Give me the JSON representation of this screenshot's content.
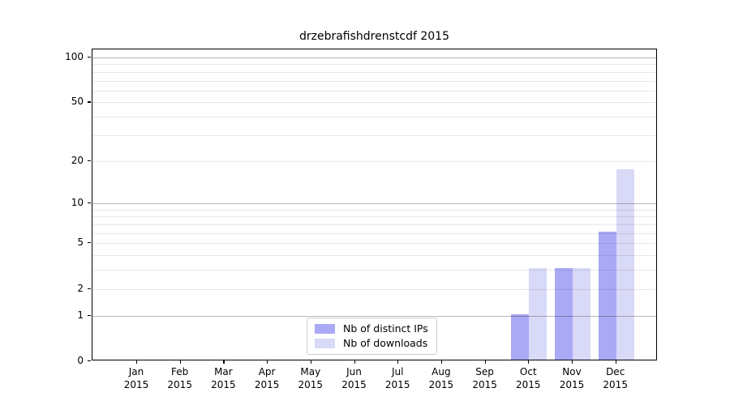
{
  "title": "drzebrafishdrenstcdf 2015",
  "chart_data": {
    "type": "bar",
    "title": "drzebrafishdrenstcdf 2015",
    "categories": [
      "Jan",
      "Feb",
      "Mar",
      "Apr",
      "May",
      "Jun",
      "Jul",
      "Aug",
      "Sep",
      "Oct",
      "Nov",
      "Dec"
    ],
    "x_tick_second_line": "2015",
    "series": [
      {
        "name": "Nb of distinct IPs",
        "color": "#a9a9f5",
        "values": [
          0,
          0,
          0,
          0,
          0,
          0,
          0,
          0,
          0,
          1,
          3,
          6
        ]
      },
      {
        "name": "Nb of downloads",
        "color": "#d9d9f8",
        "values": [
          0,
          0,
          0,
          0,
          0,
          0,
          0,
          0,
          0,
          3,
          3,
          17
        ]
      }
    ],
    "y_axis": {
      "scale": "log1p",
      "tick_labels": [
        0,
        1,
        2,
        5,
        10,
        20,
        50,
        100
      ],
      "major_gridline_values": [
        1,
        10,
        100
      ],
      "minor_gridline_values": [
        2,
        5,
        20,
        50,
        3,
        4,
        6,
        7,
        8,
        9,
        30,
        40,
        60,
        70,
        80,
        90
      ],
      "ylim": [
        0,
        113
      ]
    },
    "grid": true,
    "legend": {
      "position": "lower center",
      "entries": [
        "Nb of distinct IPs",
        "Nb of downloads"
      ]
    }
  },
  "colors": {
    "bar_distinct_ips": "#a9a9f5",
    "bar_downloads": "#d9d9f8",
    "axis": "#000000",
    "gridline_major": "#b8b8b8",
    "gridline_minor": "#e8e8e8",
    "background": "#ffffff",
    "legend_border": "#cccccc"
  }
}
